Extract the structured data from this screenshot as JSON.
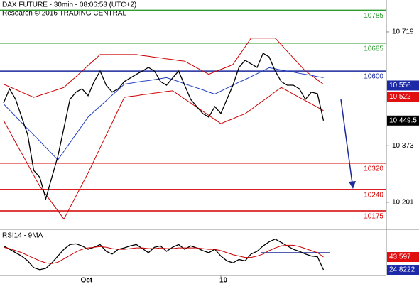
{
  "chart_data": [
    {
      "type": "line",
      "title": "DAX FUTURE - 30min - 08:06:53 (UTC+2)",
      "subtitle": "Research © 2016 TRADING CENTRAL",
      "categories": [
        null,
        null,
        null,
        null,
        null,
        null,
        null,
        null,
        null,
        null,
        null,
        null,
        null,
        "Oct",
        null,
        null,
        null,
        null,
        null,
        null,
        null,
        null,
        null,
        null,
        null,
        null,
        null,
        null,
        null,
        null,
        null,
        null,
        null,
        null,
        null,
        null,
        "10",
        null,
        null,
        null,
        null,
        null,
        null,
        null,
        null,
        null,
        null,
        null,
        null,
        null,
        null,
        null,
        null,
        null
      ],
      "series": [
        {
          "color": "#cc0000",
          "values": [
            10560,
            10552,
            10544,
            10536,
            10528,
            10520,
            10526,
            10532,
            10538,
            10544,
            10550,
            10567,
            10583,
            10600,
            10617,
            10633,
            10650,
            10650,
            10650,
            10650,
            10650,
            10650,
            10650,
            10647,
            10645,
            10642,
            10640,
            10637,
            10635,
            10632,
            10630,
            10620,
            10610,
            10600,
            10590,
            10598,
            10605,
            10612,
            10620,
            10647,
            10673,
            10700,
            10700,
            10700,
            10700,
            10700,
            10680,
            10660,
            10640,
            10620,
            10600,
            10587,
            10573,
            10560
          ]
        },
        {
          "color": "#cc0000",
          "values": [
            10450,
            10417,
            10383,
            10350,
            10317,
            10283,
            10250,
            10225,
            10200,
            10175,
            10150,
            10185,
            10220,
            10255,
            10290,
            10328,
            10367,
            10405,
            10443,
            10482,
            10520,
            10523,
            10525,
            10528,
            10530,
            10533,
            10535,
            10538,
            10540,
            10528,
            10515,
            10503,
            10490,
            10478,
            10465,
            10453,
            10440,
            10448,
            10455,
            10463,
            10470,
            10483,
            10497,
            10510,
            10523,
            10537,
            10550,
            10540,
            10530,
            10520,
            10510,
            10500,
            10490,
            10480
          ]
        },
        {
          "color": "#1f3fbf",
          "values": [
            10500,
            10481,
            10462,
            10443,
            10424,
            10406,
            10387,
            10368,
            10349,
            10330,
            10356,
            10382,
            10408,
            10434,
            10460,
            10477,
            10493,
            10510,
            10527,
            10543,
            10560,
            10563,
            10566,
            10569,
            10571,
            10574,
            10577,
            10580,
            10574,
            10568,
            10561,
            10555,
            10549,
            10543,
            10536,
            10530,
            10539,
            10548,
            10557,
            10566,
            10574,
            10583,
            10592,
            10601,
            10610,
            10607,
            10603,
            10600,
            10597,
            10593,
            10590,
            10587,
            10583,
            10580
          ]
        },
        {
          "color": "#000000",
          "values": [
            10503,
            10546,
            10514,
            10460,
            10406,
            10298,
            10277,
            10212,
            10277,
            10341,
            10427,
            10514,
            10536,
            10546,
            10525,
            10568,
            10600,
            10557,
            10536,
            10546,
            10568,
            10579,
            10590,
            10600,
            10611,
            10600,
            10568,
            10557,
            10579,
            10600,
            10557,
            10514,
            10492,
            10471,
            10460,
            10492,
            10471,
            10514,
            10557,
            10611,
            10633,
            10622,
            10611,
            10654,
            10643,
            10600,
            10568,
            10557,
            10557,
            10546,
            10514,
            10536,
            10531,
            10449.5
          ]
        }
      ],
      "levels": [
        {
          "value": 10785,
          "color": "#2e9b2e"
        },
        {
          "value": 10685,
          "color": "#2e9b2e"
        },
        {
          "value": 10600,
          "color": "#1c2a9c"
        },
        {
          "value": 10320,
          "color": "#d40000"
        },
        {
          "value": 10240,
          "color": "#d40000"
        },
        {
          "value": 10175,
          "color": "#d40000"
        }
      ],
      "markers": [
        {
          "value": 10556,
          "label": "10,556",
          "color": "#1c2aa8"
        },
        {
          "value": 10522,
          "label": "10,522",
          "color": "#e01010"
        },
        {
          "value": 10449.5,
          "label": "10,449.5",
          "color": "#000000"
        }
      ],
      "ylim": [
        10121,
        10816
      ],
      "yticks": [
        {
          "value": 10719,
          "label": "10,719"
        },
        {
          "value": 10373,
          "label": "10,373"
        },
        {
          "value": 10201,
          "label": "10,201"
        }
      ]
    },
    {
      "type": "line",
      "title": "RSI14 - 9MA",
      "series": [
        {
          "color": "#000000",
          "marker_color": "#1c2aa8",
          "values": [
            60,
            55,
            50,
            45,
            38,
            28,
            25,
            27,
            35,
            45,
            55,
            62,
            63,
            60,
            55,
            58,
            62,
            52,
            48,
            55,
            57,
            60,
            62,
            56,
            50,
            58,
            60,
            52,
            58,
            62,
            55,
            60,
            57,
            53,
            50,
            55,
            45,
            38,
            35,
            40,
            38,
            48,
            52,
            60,
            66,
            70,
            65,
            60,
            55,
            52,
            48,
            45,
            44,
            24.8222
          ]
        },
        {
          "color": "#cc0000",
          "marker_color": "#e01010",
          "values": [
            58,
            56,
            53,
            50,
            46,
            42,
            38,
            35,
            34,
            36,
            41,
            46,
            51,
            55,
            57,
            58,
            59,
            58,
            56,
            55,
            55,
            56,
            57,
            57,
            56,
            56,
            57,
            56,
            56,
            57,
            57,
            57,
            57,
            56,
            55,
            55,
            53,
            50,
            47,
            45,
            43,
            43,
            45,
            48,
            53,
            57,
            60,
            61,
            61,
            59,
            56,
            53,
            50,
            43.597
          ]
        }
      ],
      "ylim": [
        16.5,
        82.2
      ]
    }
  ]
}
